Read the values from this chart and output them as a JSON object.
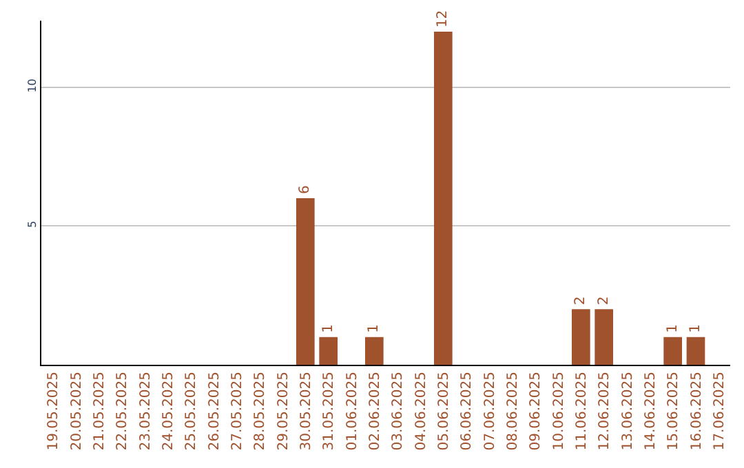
{
  "chart_data": {
    "type": "bar",
    "categories": [
      "19.05.2025",
      "20.05.2025",
      "21.05.2025",
      "22.05.2025",
      "23.05.2025",
      "24.05.2025",
      "25.05.2025",
      "26.05.2025",
      "27.05.2025",
      "28.05.2025",
      "29.05.2025",
      "30.05.2025",
      "31.05.2025",
      "01.06.2025",
      "02.06.2025",
      "03.06.2025",
      "04.06.2025",
      "05.06.2025",
      "06.06.2025",
      "07.06.2025",
      "08.06.2025",
      "09.06.2025",
      "10.06.2025",
      "11.06.2025",
      "12.06.2025",
      "13.06.2025",
      "14.06.2025",
      "15.06.2025",
      "16.06.2025",
      "17.06.2025"
    ],
    "values": [
      0,
      0,
      0,
      0,
      0,
      0,
      0,
      0,
      0,
      0,
      0,
      6,
      1,
      0,
      1,
      0,
      0,
      12,
      0,
      0,
      0,
      0,
      0,
      2,
      2,
      0,
      0,
      1,
      1,
      0
    ],
    "value_labels": [
      null,
      null,
      null,
      null,
      null,
      null,
      null,
      null,
      null,
      null,
      null,
      "6",
      "1",
      null,
      "1",
      null,
      null,
      "12",
      null,
      null,
      null,
      null,
      null,
      "2",
      "2",
      null,
      null,
      "1",
      "1",
      null
    ],
    "color": "#a0522d",
    "ylim": [
      0,
      12.4
    ],
    "yticks": [
      5,
      10
    ],
    "grid": "y",
    "legend": false
  }
}
